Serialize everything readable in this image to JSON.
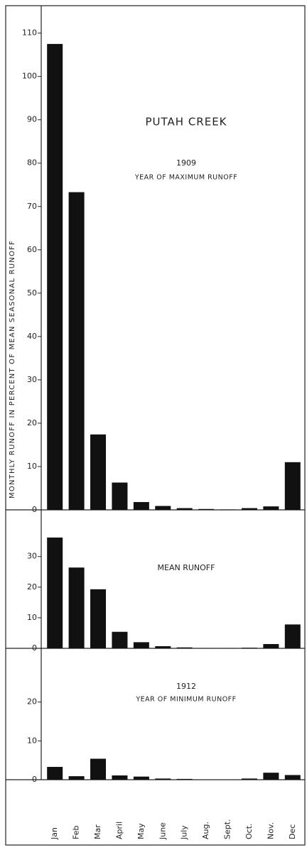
{
  "chart_data": [
    {
      "type": "bar",
      "title": "PUTAH CREEK",
      "subtitle": "1909",
      "caption": "YEAR OF MAXIMUM RUNOFF",
      "ylabel": "MONTHLY RUNOFF IN PERCENT OF MEAN SEASONAL RUNOFF",
      "color": "#111111",
      "values": [
        107.5,
        73.3,
        17.4,
        6.3,
        1.8,
        0.9,
        0.4,
        0.2,
        0.1,
        0.4,
        0.8,
        11.0
      ],
      "ylim": [
        0,
        116
      ],
      "yticks": [
        0,
        10,
        20,
        30,
        40,
        50,
        60,
        70,
        80,
        90,
        100,
        110
      ]
    },
    {
      "type": "bar",
      "subtitle": "MEAN RUNOFF",
      "color": "#111111",
      "values": [
        36.2,
        26.4,
        19.3,
        5.4,
        2.0,
        0.7,
        0.3,
        0.1,
        0.1,
        0.2,
        1.4,
        7.8
      ],
      "ylim": [
        0,
        42
      ],
      "yticks": [
        0,
        10,
        20,
        30
      ]
    },
    {
      "type": "bar",
      "subtitle": "1912",
      "caption": "YEAR OF MINIMUM RUNOFF",
      "color": "#111111",
      "categories": [
        "Jan",
        "Feb",
        "Mar",
        "April",
        "May",
        "June",
        "July",
        "Aug.",
        "Sept.",
        "Oct.",
        "Nov.",
        "Dec"
      ],
      "values": [
        3.3,
        0.9,
        5.4,
        1.1,
        0.8,
        0.3,
        0.2,
        0,
        0,
        0.3,
        1.8,
        1.2
      ],
      "ylim": [
        0,
        32
      ],
      "yticks": [
        0,
        10,
        20
      ]
    }
  ]
}
